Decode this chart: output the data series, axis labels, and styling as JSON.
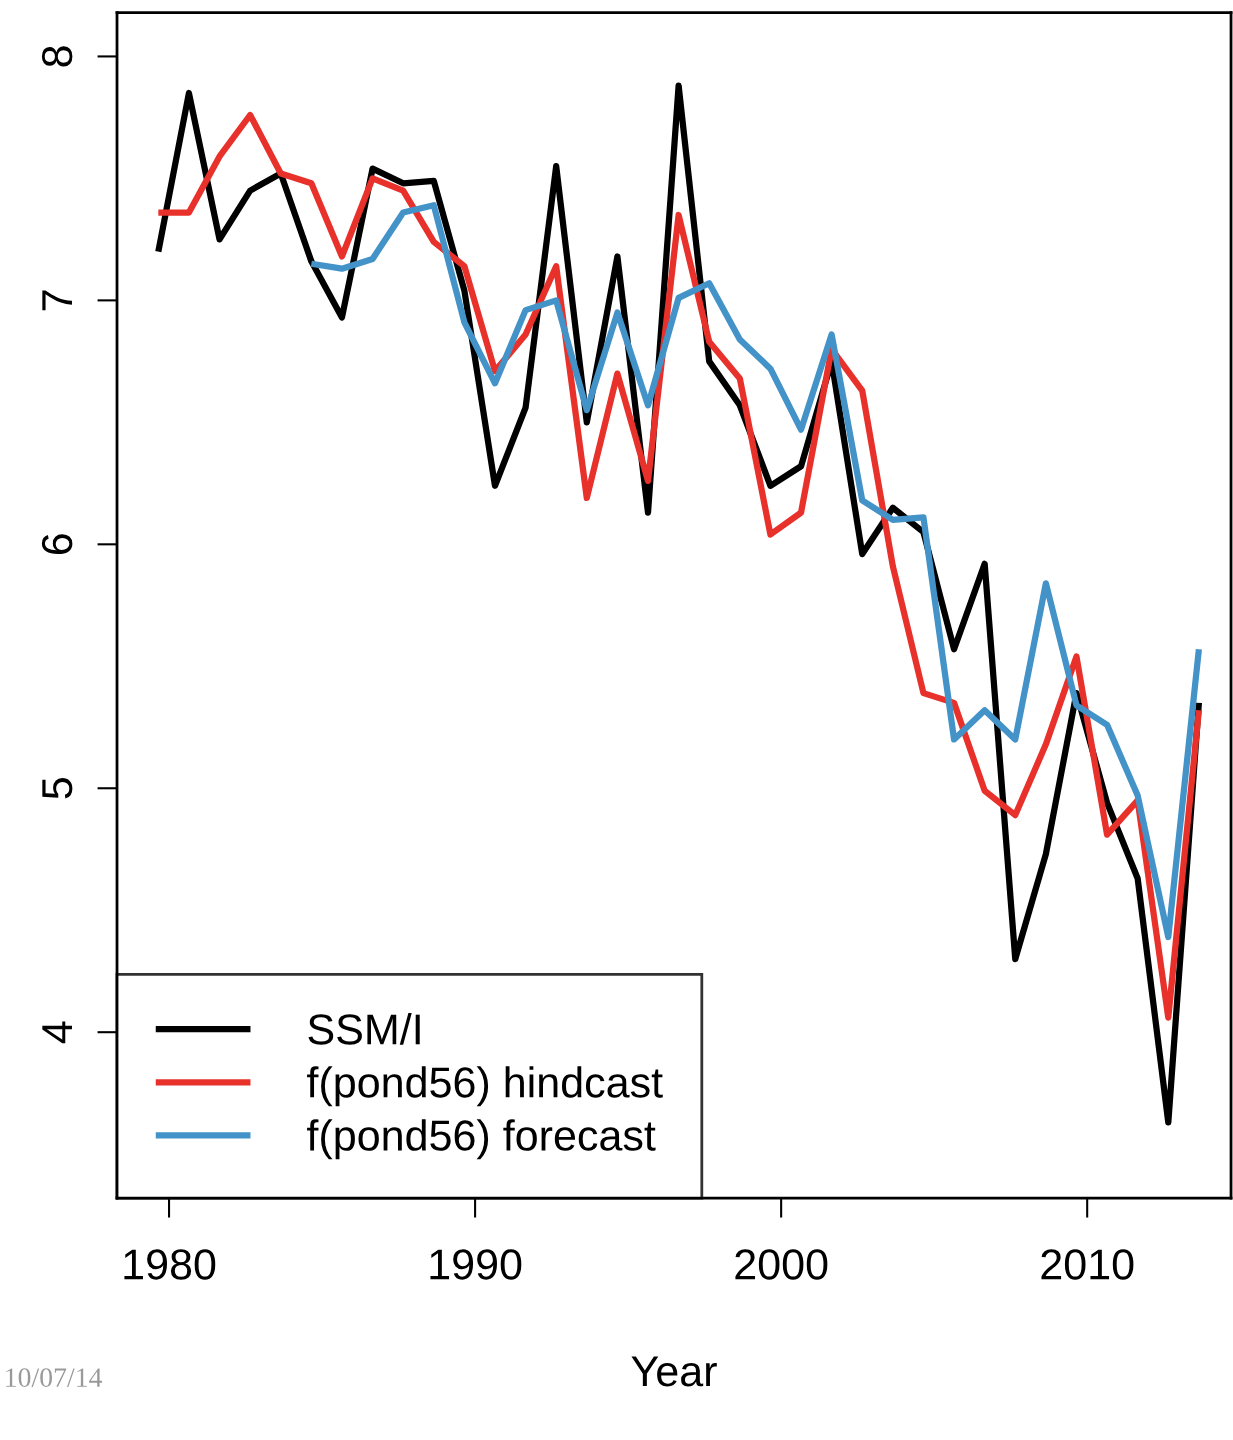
{
  "chart_data": {
    "type": "line",
    "xlabel": "Year",
    "annotations": [
      "10/07/14"
    ],
    "x": [
      1979.65,
      1980.65,
      1981.65,
      1982.65,
      1983.65,
      1984.65,
      1985.65,
      1986.65,
      1987.65,
      1988.65,
      1989.65,
      1990.65,
      1991.65,
      1992.65,
      1993.65,
      1994.65,
      1995.65,
      1996.65,
      1997.65,
      1998.65,
      1999.65,
      2000.65,
      2001.65,
      2002.65,
      2003.65,
      2004.65,
      2005.65,
      2006.65,
      2007.65,
      2008.65,
      2009.65,
      2010.65,
      2011.65,
      2012.65,
      2013.65
    ],
    "series": [
      {
        "name": "SSM/I",
        "color": "#000000",
        "values": [
          7.2,
          7.85,
          7.25,
          7.45,
          7.52,
          7.16,
          6.93,
          7.54,
          7.48,
          7.49,
          7.04,
          6.24,
          6.56,
          7.55,
          6.5,
          7.18,
          6.13,
          7.88,
          6.75,
          6.57,
          6.24,
          6.32,
          6.75,
          5.96,
          6.15,
          6.05,
          5.57,
          5.92,
          4.3,
          4.73,
          5.39,
          4.94,
          4.63,
          3.63,
          5.35
        ]
      },
      {
        "name": "f(pond56) hindcast",
        "color": "#e8312a",
        "values": [
          7.36,
          7.36,
          7.59,
          7.76,
          7.52,
          7.48,
          7.18,
          7.5,
          7.45,
          7.24,
          7.14,
          6.71,
          6.86,
          7.14,
          6.19,
          6.7,
          6.26,
          7.35,
          6.83,
          6.68,
          6.04,
          6.13,
          6.8,
          6.63,
          5.91,
          5.39,
          5.35,
          4.99,
          4.89,
          5.18,
          5.54,
          4.81,
          4.95,
          4.06,
          5.32
        ]
      },
      {
        "name": "f(pond56) forecast",
        "color": "#4393c8",
        "values": [
          null,
          null,
          null,
          null,
          null,
          7.15,
          7.13,
          7.17,
          7.36,
          7.39,
          6.91,
          6.66,
          6.96,
          7.0,
          6.55,
          6.95,
          6.57,
          7.01,
          7.07,
          6.84,
          6.72,
          6.47,
          6.86,
          6.18,
          6.1,
          6.11,
          5.2,
          5.32,
          5.2,
          5.84,
          5.34,
          5.26,
          4.97,
          4.39,
          5.57
        ]
      }
    ],
    "xlim": [
      1978.3,
      2014.7
    ],
    "ylim": [
      3.32,
      8.18
    ],
    "xticks": [
      1980,
      1990,
      2000,
      2010
    ],
    "yticks": [
      4,
      5,
      6,
      7,
      8
    ],
    "grid": false,
    "legend": "bottom left",
    "line_style": "solid",
    "marker": "none"
  }
}
